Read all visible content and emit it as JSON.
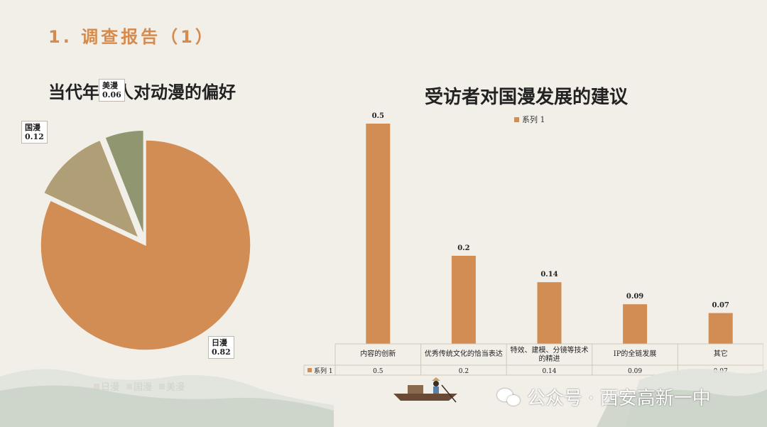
{
  "slide": {
    "title": "1. 调查报告（1）"
  },
  "colors": {
    "accent": "#d58b4d",
    "japan": "#d28d54",
    "china": "#b09f76",
    "us": "#8f9670",
    "bar": "#d28d54"
  },
  "pie_chart": {
    "title": "当代年轻人对动漫的偏好",
    "legend": [
      "日漫",
      "国漫",
      "美漫"
    ]
  },
  "bar_chart": {
    "title": "受访者对国漫发展的建议",
    "legend": "系列 1"
  },
  "chart_data": [
    {
      "type": "pie",
      "title": "当代年轻人对动漫的偏好",
      "categories": [
        "日漫",
        "国漫",
        "美漫"
      ],
      "values": [
        0.82,
        0.12,
        0.06
      ],
      "legend_position": "bottom"
    },
    {
      "type": "bar",
      "title": "受访者对国漫发展的建议",
      "categories": [
        "内容的创新",
        "优秀传统文化的恰当表达",
        "特效、建模、分镜等技术的精进",
        "IP的全链发展",
        "其它"
      ],
      "series": [
        {
          "name": "系列 1",
          "values": [
            0.5,
            0.2,
            0.14,
            0.09,
            0.07
          ]
        }
      ],
      "ylim": [
        0,
        0.5
      ],
      "grid": false,
      "legend_position": "top",
      "data_table": true
    }
  ],
  "watermark": {
    "text": "公众号 · 西安高新一中",
    "icon": "wechat-icon"
  }
}
